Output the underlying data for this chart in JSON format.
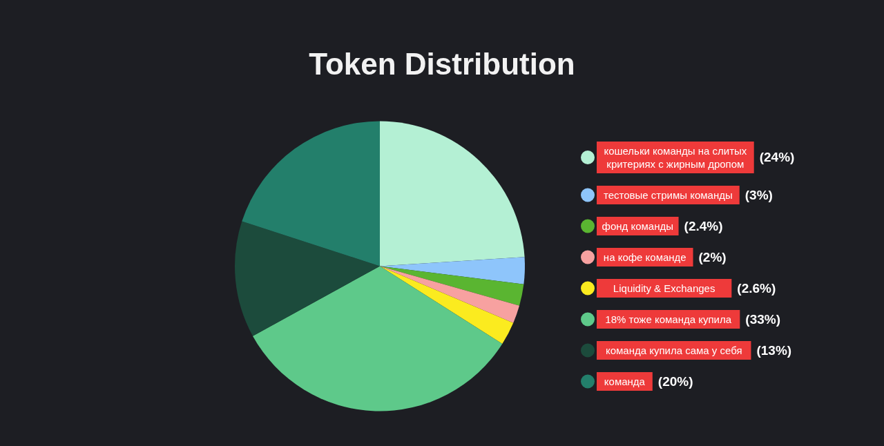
{
  "chart_data": {
    "type": "pie",
    "title": "Token Distribution",
    "categories": [
      "кошельки команды на слитых критериях с жирным дропом",
      "тестовые стримы команды",
      "фонд команды",
      "на кофе команде",
      "Liquidity & Exchanges",
      "18% тоже команда купила",
      "команда купила сама у себя",
      "команда"
    ],
    "values": [
      24,
      3,
      2.4,
      2,
      2.6,
      33,
      13,
      20
    ],
    "colors": [
      "#b4f0d4",
      "#8ec5fb",
      "#5ab531",
      "#f7a1a0",
      "#fbeb1f",
      "#5ec98a",
      "#1c4b3c",
      "#237f6b"
    ],
    "value_labels": [
      "(24%)",
      "(3%)",
      "(2.4%)",
      "(2%)",
      "(2.6%)",
      "(33%)",
      "(13%)",
      "(20%)"
    ],
    "legend": "right"
  }
}
